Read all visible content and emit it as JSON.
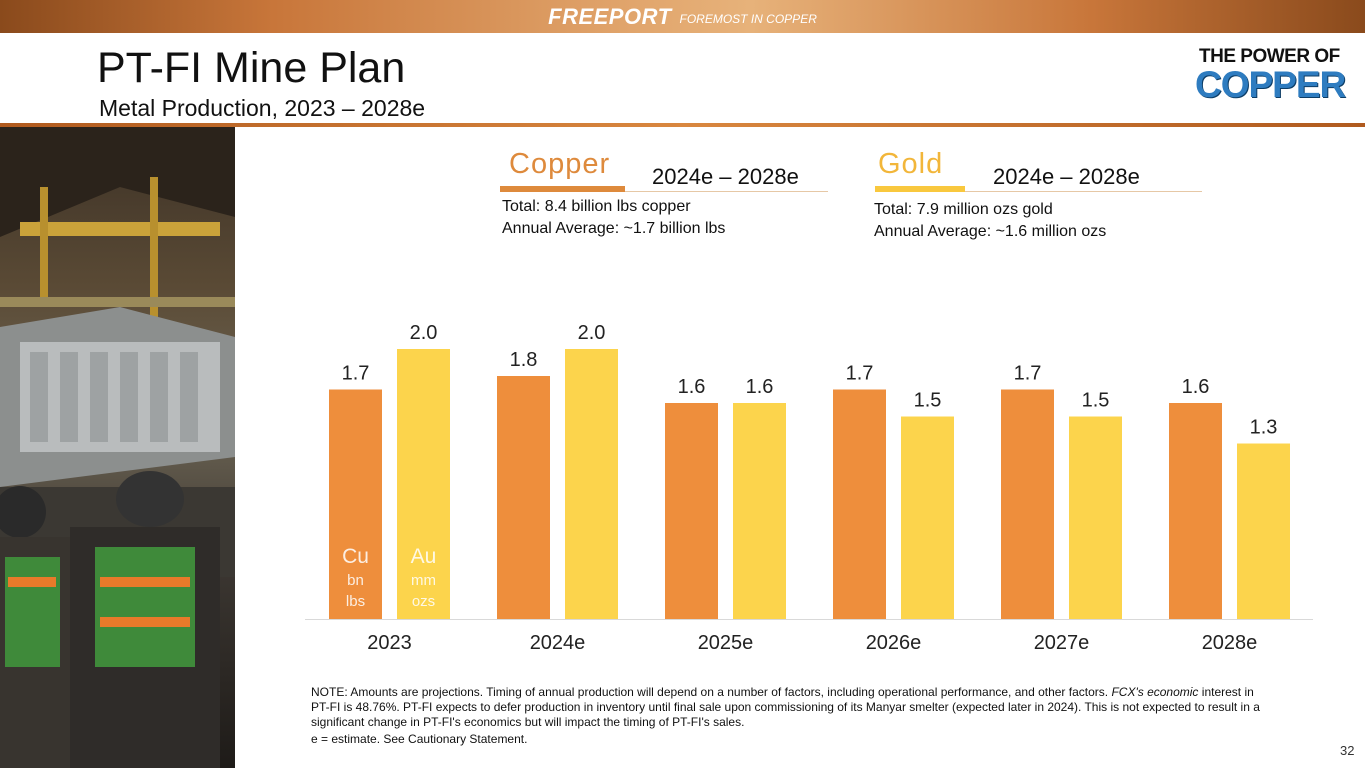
{
  "brand": {
    "name": "FREEPORT",
    "tagline": "FOREMOST IN COPPER"
  },
  "slide": {
    "title": "PT-FI Mine Plan",
    "subtitle": "Metal Production, 2023 – 2028e",
    "page_number": "32"
  },
  "logo": {
    "line1": "THE POWER OF",
    "line2": "COPPER"
  },
  "colors": {
    "copper": "#ee8e3c",
    "gold": "#fcd44c",
    "copper_head": "#de8a3c",
    "gold_head": "#f2b63a"
  },
  "legend": {
    "copper": {
      "head": "Copper",
      "range": "2024e – 2028e",
      "total": "Total: 8.4 billion lbs copper",
      "average": "Annual Average: ~1.7 billion lbs"
    },
    "gold": {
      "head": "Gold",
      "range": "2024e – 2028e",
      "total": "Total: 7.9 million ozs gold",
      "average": "Annual Average: ~1.6 million ozs"
    }
  },
  "chart_data": {
    "type": "bar",
    "title": "Metal Production, 2023 – 2028e",
    "categories": [
      "2023",
      "2024e",
      "2025e",
      "2026e",
      "2027e",
      "2028e"
    ],
    "series": [
      {
        "name": "Cu",
        "unit": "bn lbs",
        "values": [
          1.7,
          1.8,
          1.6,
          1.7,
          1.7,
          1.6
        ],
        "labels": [
          "1.7",
          "1.8",
          "1.6",
          "1.7",
          "1.7",
          "1.6"
        ]
      },
      {
        "name": "Au",
        "unit": "mm ozs",
        "values": [
          2.0,
          2.0,
          1.6,
          1.5,
          1.5,
          1.3
        ],
        "labels": [
          "2.0",
          "2.0",
          "1.6",
          "1.5",
          "1.5",
          "1.3"
        ]
      }
    ],
    "series_units": [
      {
        "symbol": "Cu",
        "line1": "bn",
        "line2": "lbs"
      },
      {
        "symbol": "Au",
        "line1": "mm",
        "line2": "ozs"
      }
    ],
    "ylim": [
      0,
      2.0
    ],
    "xlabel": "",
    "ylabel": "",
    "grid": false
  },
  "footnote": {
    "note_prefix": "NOTE: Amounts are projections. Timing of annual production will depend on a number of factors, including operational performance, and other factors. ",
    "note_italic": "FCX's economic",
    "note_suffix": " interest in PT-FI is 48.76%. PT-FI expects to defer production in inventory until final sale upon commissioning of its Manyar smelter (expected later in 2024). This is not expected to result in a significant change in PT-FI's economics but will impact the timing of PT-FI's sales.",
    "estimate": "e = estimate. See Cautionary Statement."
  }
}
